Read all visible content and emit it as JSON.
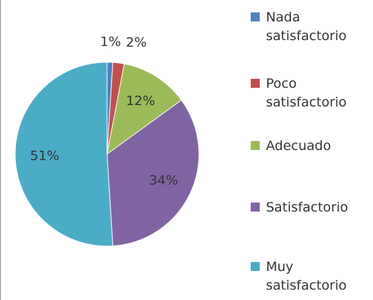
{
  "chart_data": {
    "type": "pie",
    "categories": [
      "Nada satisfactorio",
      "Poco satisfactorio",
      "Adecuado",
      "Satisfactorio",
      "Muy satisfactorio"
    ],
    "values": [
      1,
      2,
      12,
      34,
      51
    ],
    "value_labels": [
      "1%",
      "2%",
      "12%",
      "34%",
      "51%"
    ],
    "colors": [
      "#4f81bd",
      "#c0504d",
      "#9bbb59",
      "#8064a2",
      "#4bacc6"
    ],
    "legend": "right"
  }
}
